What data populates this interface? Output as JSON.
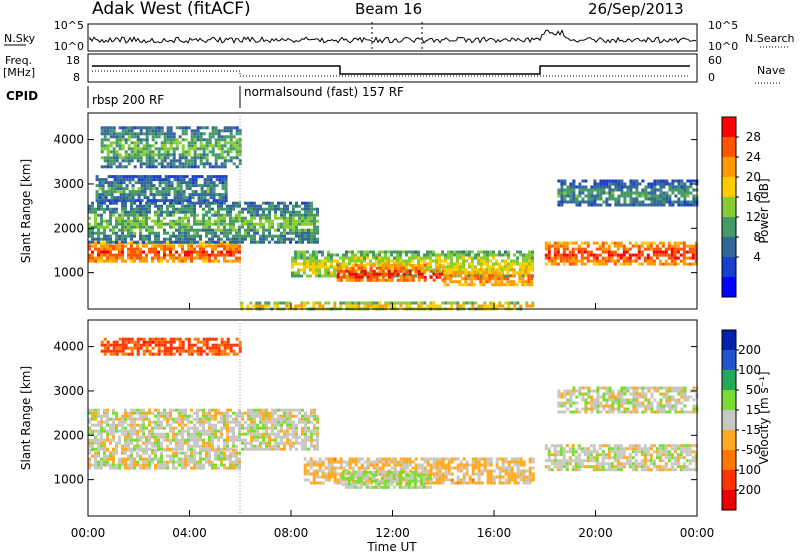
{
  "header": {
    "title": "Adak West (fitACF)",
    "beam": "Beam 16",
    "date": "26/Sep/2013"
  },
  "noise_panel": {
    "left_label": "N.Sky",
    "right_label": "N.Search",
    "left_ticks": [
      "10^5",
      "10^0"
    ],
    "right_ticks": [
      "10^5",
      "10^0"
    ]
  },
  "freq_panel": {
    "left_label_1": "Freq.",
    "left_label_2": "[MHz]",
    "right_label": "Nave",
    "left_ticks": [
      "18",
      "8"
    ],
    "right_ticks": [
      "60",
      "0"
    ]
  },
  "cpid": {
    "label": "CPID",
    "segments": [
      {
        "name": "rbsp 200 RF",
        "start_hour": 0
      },
      {
        "name": "normalsound (fast) 157 RF",
        "start_hour": 6
      }
    ]
  },
  "x_axis": {
    "label": "Time UT",
    "ticks": [
      "00:00",
      "04:00",
      "08:00",
      "12:00",
      "16:00",
      "20:00",
      "00:00"
    ]
  },
  "y_axis": {
    "label": "Slant Range [km]",
    "ticks": [
      "4000",
      "3000",
      "2000",
      "1000"
    ]
  },
  "power_scale": {
    "label": "Power [dB]",
    "ticks": [
      "28",
      "24",
      "20",
      "16",
      "12",
      "8",
      "4"
    ],
    "colors": [
      "#ff0000",
      "#ff5500",
      "#ff9900",
      "#ffcc00",
      "#88cc33",
      "#449966",
      "#336699",
      "#1a3fcc",
      "#0000ff"
    ]
  },
  "velocity_scale": {
    "label": "Velocity [m s⁻¹]",
    "ticks": [
      "200",
      "100",
      "50",
      "15",
      "-15",
      "-50",
      "-100",
      "-200"
    ],
    "colors": [
      "#0022aa",
      "#2255cc",
      "#22aa55",
      "#77dd33",
      "#c8c8c0",
      "#ffaa22",
      "#ff7700",
      "#ff3300",
      "#ee0000"
    ]
  },
  "chart_data": {
    "type": "heatmap",
    "title": "Adak West (fitACF)",
    "xlabel": "Time UT",
    "ylabel": "Slant Range [km]",
    "xlim": [
      0,
      24
    ],
    "ylim": [
      180,
      4600
    ],
    "panels": [
      {
        "name": "Power [dB]",
        "range": [
          0,
          30
        ],
        "regions": [
          {
            "t0": 0.0,
            "t1": 6.0,
            "r0": 1250,
            "r1": 1700,
            "value": 26
          },
          {
            "t0": 0.0,
            "t1": 9.0,
            "r0": 1700,
            "r1": 2600,
            "value": 14
          },
          {
            "t0": 0.3,
            "t1": 5.5,
            "r0": 2600,
            "r1": 3200,
            "value": 12
          },
          {
            "t0": 0.5,
            "t1": 6.0,
            "r0": 3400,
            "r1": 4300,
            "value": 14
          },
          {
            "t0": 8.0,
            "t1": 17.5,
            "r0": 900,
            "r1": 1500,
            "value": 18
          },
          {
            "t0": 9.8,
            "t1": 14.0,
            "r0": 800,
            "r1": 1200,
            "value": 27
          },
          {
            "t0": 14.0,
            "t1": 17.5,
            "r0": 700,
            "r1": 1100,
            "value": 24
          },
          {
            "t0": 18.0,
            "t1": 24.0,
            "r0": 1200,
            "r1": 1700,
            "value": 27
          },
          {
            "t0": 18.5,
            "t1": 24.0,
            "r0": 2500,
            "r1": 3100,
            "value": 12
          },
          {
            "t0": 6.0,
            "t1": 17.5,
            "r0": 200,
            "r1": 350,
            "value": 20
          }
        ]
      },
      {
        "name": "Velocity [m s-1]",
        "range": [
          -250,
          250
        ],
        "regions": [
          {
            "t0": 0.0,
            "t1": 6.0,
            "r0": 1250,
            "r1": 1700,
            "value": 0
          },
          {
            "t0": 0.0,
            "t1": 9.0,
            "r0": 1700,
            "r1": 2600,
            "value": 0
          },
          {
            "t0": 0.5,
            "t1": 6.0,
            "r0": 3800,
            "r1": 4200,
            "value": -150
          },
          {
            "t0": 8.5,
            "t1": 17.5,
            "r0": 900,
            "r1": 1500,
            "value": -40
          },
          {
            "t0": 10.0,
            "t1": 13.5,
            "r0": 800,
            "r1": 1200,
            "value": 30
          },
          {
            "t0": 18.0,
            "t1": 24.0,
            "r0": 1200,
            "r1": 1800,
            "value": 0
          },
          {
            "t0": 18.5,
            "t1": 24.0,
            "r0": 2500,
            "r1": 3100,
            "value": 0
          }
        ]
      }
    ]
  }
}
